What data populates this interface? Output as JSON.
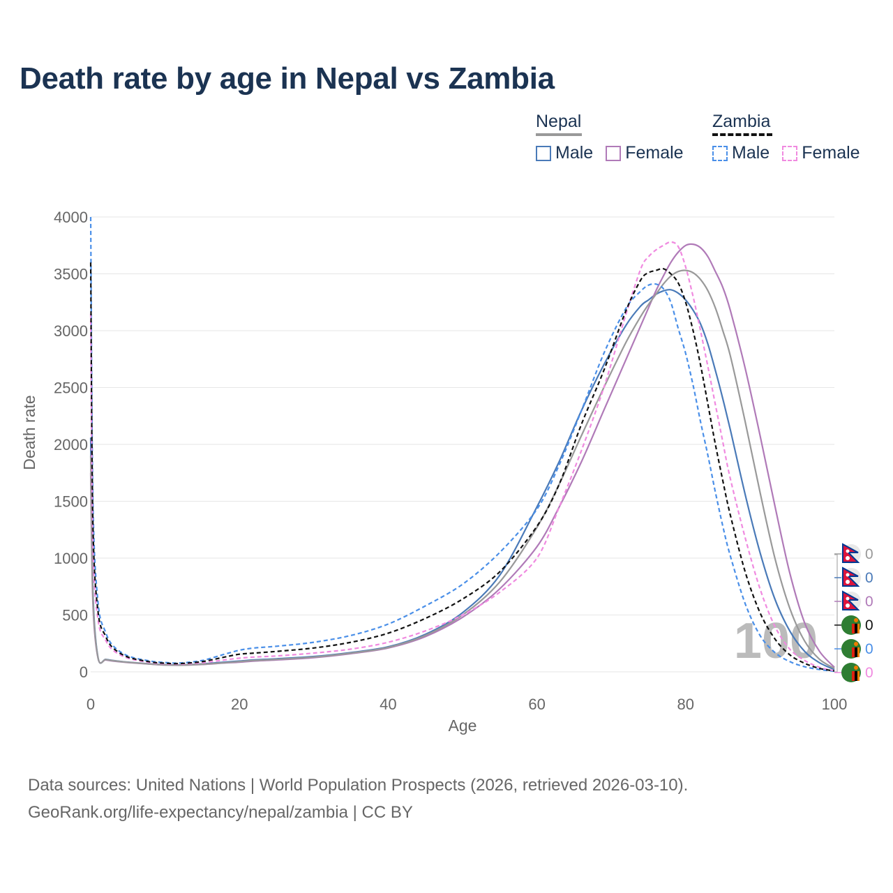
{
  "title": "Death rate by age in Nepal vs Zambia",
  "legend": {
    "groups": [
      {
        "name": "Nepal",
        "style": "solid",
        "underline_color": "#999999",
        "items": [
          {
            "label": "Male",
            "color": "#4a7ab8"
          },
          {
            "label": "Female",
            "color": "#b07ab8"
          }
        ]
      },
      {
        "name": "Zambia",
        "style": "dashed",
        "underline_color": "#111111",
        "items": [
          {
            "label": "Male",
            "color": "#4a8fe8"
          },
          {
            "label": "Female",
            "color": "#f08ae0"
          }
        ]
      }
    ]
  },
  "chart_data": {
    "type": "line",
    "xlabel": "Age",
    "ylabel": "Death rate",
    "xlim": [
      0,
      100
    ],
    "ylim": [
      0,
      4000
    ],
    "xticks": [
      0,
      20,
      40,
      60,
      80,
      100
    ],
    "yticks": [
      0,
      500,
      1000,
      1500,
      2000,
      2500,
      3000,
      3500,
      4000
    ],
    "grid": true,
    "watermark": "100",
    "x": [
      0,
      0.3,
      1,
      2,
      3,
      5,
      8,
      10,
      12,
      15,
      18,
      20,
      22,
      25,
      30,
      35,
      40,
      45,
      50,
      55,
      60,
      63,
      66,
      69,
      72,
      74,
      75,
      76,
      77,
      78,
      79,
      80,
      81,
      82,
      83,
      84,
      85,
      86,
      88,
      90,
      92,
      94,
      96,
      98,
      100
    ],
    "series": [
      {
        "name": "Nepal Male",
        "country": "Nepal",
        "sex": "Male",
        "color": "#4a7ab8",
        "dashed": false,
        "values": [
          2060,
          700,
          120,
          110,
          100,
          85,
          70,
          62,
          60,
          70,
          85,
          95,
          105,
          115,
          135,
          170,
          220,
          330,
          520,
          850,
          1450,
          1850,
          2300,
          2700,
          3050,
          3220,
          3270,
          3320,
          3350,
          3360,
          3330,
          3270,
          3180,
          3060,
          2880,
          2650,
          2400,
          2130,
          1560,
          1050,
          640,
          360,
          180,
          80,
          20
        ]
      },
      {
        "name": "Nepal Female",
        "country": "Nepal",
        "sex": "Female",
        "color": "#b07ab8",
        "dashed": false,
        "values": [
          1750,
          600,
          115,
          105,
          95,
          82,
          68,
          60,
          58,
          65,
          78,
          85,
          95,
          105,
          125,
          160,
          210,
          310,
          480,
          730,
          1100,
          1450,
          1850,
          2300,
          2750,
          3050,
          3200,
          3350,
          3480,
          3600,
          3690,
          3750,
          3760,
          3730,
          3650,
          3520,
          3380,
          3180,
          2670,
          2080,
          1460,
          870,
          430,
          180,
          40
        ]
      },
      {
        "name": "Nepal Both",
        "country": "Nepal",
        "sex": "Both",
        "color": "#999999",
        "dashed": false,
        "values": [
          1900,
          650,
          118,
          108,
          98,
          84,
          69,
          61,
          59,
          67,
          80,
          90,
          100,
          110,
          130,
          165,
          215,
          320,
          500,
          790,
          1270,
          1650,
          2080,
          2500,
          2900,
          3130,
          3230,
          3320,
          3410,
          3480,
          3520,
          3530,
          3510,
          3450,
          3350,
          3200,
          3000,
          2780,
          2200,
          1580,
          1000,
          560,
          270,
          110,
          30
        ]
      },
      {
        "name": "Zambia Male",
        "country": "Zambia",
        "sex": "Male",
        "color": "#4a8fe8",
        "dashed": true,
        "values": [
          4000,
          1500,
          600,
          350,
          230,
          140,
          95,
          82,
          78,
          100,
          155,
          190,
          210,
          225,
          260,
          320,
          420,
          580,
          770,
          1050,
          1430,
          1820,
          2300,
          2800,
          3200,
          3350,
          3400,
          3410,
          3370,
          3250,
          3020,
          2800,
          2520,
          2200,
          1900,
          1580,
          1280,
          1020,
          600,
          320,
          170,
          90,
          45,
          20,
          5
        ]
      },
      {
        "name": "Zambia Female",
        "country": "Zambia",
        "sex": "Female",
        "color": "#f08ae0",
        "dashed": true,
        "values": [
          3150,
          1100,
          450,
          280,
          190,
          120,
          82,
          70,
          68,
          80,
          105,
          120,
          130,
          140,
          165,
          200,
          260,
          360,
          500,
          700,
          1000,
          1450,
          1950,
          2500,
          3150,
          3550,
          3650,
          3710,
          3750,
          3780,
          3740,
          3560,
          3300,
          3000,
          2680,
          2350,
          2020,
          1700,
          1180,
          730,
          400,
          200,
          100,
          40,
          10
        ]
      },
      {
        "name": "Zambia Both",
        "country": "Zambia",
        "sex": "Both",
        "color": "#111111",
        "dashed": true,
        "values": [
          3600,
          1300,
          520,
          315,
          210,
          130,
          88,
          76,
          73,
          90,
          130,
          155,
          165,
          180,
          210,
          260,
          340,
          470,
          640,
          880,
          1280,
          1650,
          2180,
          2650,
          3180,
          3450,
          3510,
          3530,
          3545,
          3500,
          3420,
          3250,
          3000,
          2700,
          2350,
          2000,
          1680,
          1380,
          880,
          520,
          290,
          150,
          75,
          30,
          8
        ]
      }
    ],
    "end_labels": [
      {
        "text": "0",
        "flag": "nepal",
        "color": "#999999"
      },
      {
        "text": "0",
        "flag": "nepal",
        "color": "#4a7ab8"
      },
      {
        "text": "0",
        "flag": "nepal",
        "color": "#b07ab8"
      },
      {
        "text": "0",
        "flag": "zambia",
        "color": "#111111"
      },
      {
        "text": "0",
        "flag": "zambia",
        "color": "#4a8fe8"
      },
      {
        "text": "0",
        "flag": "zambia",
        "color": "#f08ae0"
      }
    ]
  },
  "footer": {
    "line1": "Data sources: United Nations | World Population Prospects (2026, retrieved 2026-03-10).",
    "line2": "GeoRank.org/life-expectancy/nepal/zambia | CC BY"
  }
}
